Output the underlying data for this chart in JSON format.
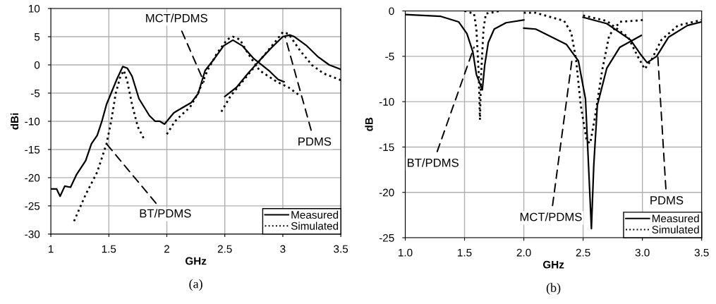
{
  "chart_data": [
    {
      "type": "line",
      "xlabel": "GHz",
      "ylabel": "dBi",
      "xlim": [
        1,
        3.5
      ],
      "ylim": [
        -30,
        10
      ],
      "xticks": [
        1,
        1.5,
        2,
        2.5,
        3,
        3.5
      ],
      "yticks": [
        -30,
        -25,
        -20,
        -15,
        -10,
        -5,
        0,
        5,
        10
      ],
      "grid": true,
      "legend": "bottom right",
      "series": [
        {
          "name": "Measured",
          "color": "#000000",
          "line_style": "solid",
          "x": [
            1.0,
            1.05,
            1.08,
            1.12,
            1.17,
            1.22,
            1.3,
            1.35,
            1.4,
            1.44,
            1.48,
            1.52,
            1.57,
            1.62,
            1.66,
            1.7,
            1.73,
            1.76,
            1.82,
            1.85,
            1.9,
            1.94,
            1.98,
            2.0,
            2.06,
            2.1,
            2.21,
            2.27,
            2.33,
            2.41,
            2.49,
            2.57,
            2.65,
            2.75,
            2.88,
            2.96,
            3.01
          ],
          "values": [
            -22,
            -22,
            -23.3,
            -21.5,
            -21.7,
            -19.5,
            -17,
            -14,
            -12.5,
            -10,
            -7,
            -5,
            -2.5,
            -0.3,
            -0.6,
            -2,
            -4,
            -6,
            -8,
            -9,
            -10,
            -10,
            -10.5,
            -10,
            -8.5,
            -8,
            -6.7,
            -5.1,
            -1,
            1.1,
            3.4,
            4.4,
            3.4,
            1.1,
            -1,
            -2.6,
            -3
          ]
        },
        {
          "name": "Simulated",
          "color": "#000000",
          "line_style": "dotted",
          "x": [
            1.2,
            1.3,
            1.4,
            1.48,
            1.52,
            1.56,
            1.6,
            1.63,
            1.66,
            1.7,
            1.75,
            1.8
          ],
          "values": [
            -27.7,
            -23,
            -19,
            -14,
            -10,
            -5,
            -2,
            -1,
            -3,
            -7,
            -11,
            -13
          ]
        },
        {
          "color": "#000000",
          "line_style": "dotted",
          "x": [
            2.0,
            2.07,
            2.12,
            2.2,
            2.27,
            2.35,
            2.43,
            2.52,
            2.57,
            2.63,
            2.7,
            2.8,
            2.95,
            3.05,
            3.15
          ],
          "values": [
            -12.3,
            -10,
            -9,
            -7.5,
            -5,
            -1,
            2,
            4.5,
            5,
            4.5,
            2,
            -1,
            -3,
            -4,
            -5.5
          ]
        },
        {
          "color": "#000000",
          "line_style": "solid",
          "x": [
            2.5,
            2.6,
            2.7,
            2.8,
            2.9,
            3.0,
            3.06,
            3.1,
            3.2,
            3.3,
            3.4,
            3.5
          ],
          "values": [
            -5.6,
            -4,
            -1.5,
            0.8,
            3,
            5,
            5.3,
            5,
            3.5,
            1.5,
            0,
            -0.8
          ]
        },
        {
          "color": "#000000",
          "line_style": "dotted",
          "x": [
            2.47,
            2.55,
            2.65,
            2.75,
            2.85,
            2.95,
            3.0,
            3.05,
            3.15,
            3.25,
            3.35,
            3.5
          ],
          "values": [
            -8.3,
            -5.5,
            -3,
            -0.5,
            2,
            4.5,
            5.8,
            5.5,
            2.5,
            0,
            -1.5,
            -2.7
          ]
        }
      ],
      "annotations": [
        {
          "text": "MCT/PDMS",
          "x": 2.32,
          "y": -3
        },
        {
          "text": "BT/PDMS",
          "x": 1.48,
          "y": -14
        },
        {
          "text": "PDMS",
          "x": 3.02,
          "y": 5
        },
        "(a)"
      ]
    },
    {
      "type": "line",
      "xlabel": "GHz",
      "ylabel": "dB",
      "xlim": [
        1,
        3.5
      ],
      "ylim": [
        -25,
        0
      ],
      "xticks": [
        {
          "value": 1,
          "label": "1.0"
        },
        1.5,
        {
          "value": 2,
          "label": "2.0"
        },
        2.5,
        {
          "value": 3,
          "label": "3.0"
        },
        3.5
      ],
      "yticks": [
        -25,
        -20,
        -15,
        -10,
        -5,
        0
      ],
      "grid": true,
      "legend": "bottom right",
      "series": [
        {
          "name": "Measured",
          "color": "#000000",
          "line_style": "solid",
          "x": [
            1.0,
            1.3,
            1.45,
            1.52,
            1.57,
            1.6,
            1.65,
            1.67,
            1.7,
            1.75,
            1.85,
            2.0
          ],
          "values": [
            -0.4,
            -0.6,
            -1.2,
            -2.5,
            -4.5,
            -7,
            -8.7,
            -6,
            -3.5,
            -2,
            -1.3,
            -1
          ]
        },
        {
          "name": "Simulated",
          "color": "#000000",
          "line_style": "dotted",
          "x": [
            1.5,
            1.58,
            1.6,
            1.62,
            1.63,
            1.64,
            1.66,
            1.68,
            1.8
          ],
          "values": [
            0,
            -0.3,
            -2,
            -7,
            -12,
            -7,
            -2,
            -0.3,
            0
          ]
        },
        {
          "color": "#000000",
          "line_style": "solid",
          "x": [
            2.0,
            2.1,
            2.36,
            2.46,
            2.52,
            2.54,
            2.57,
            2.59,
            2.62,
            2.7,
            2.81,
            2.99
          ],
          "values": [
            -1.9,
            -2,
            -3.7,
            -5.5,
            -9.7,
            -15.4,
            -24,
            -17,
            -10.4,
            -6.3,
            -4,
            -2.7
          ]
        },
        {
          "color": "#000000",
          "line_style": "dotted",
          "x": [
            2.0,
            2.1,
            2.34,
            2.4,
            2.44,
            2.48,
            2.53,
            2.56,
            2.6,
            2.66,
            2.72,
            2.81,
            3.01
          ],
          "values": [
            -0.2,
            -0.2,
            -1.1,
            -2.4,
            -5.3,
            -10.4,
            -14.3,
            -14.6,
            -11.7,
            -6.6,
            -2.7,
            -1.2,
            -1
          ]
        },
        {
          "color": "#000000",
          "line_style": "solid",
          "x": [
            2.5,
            2.7,
            2.9,
            2.98,
            3.04,
            3.12,
            3.22,
            3.38,
            3.5
          ],
          "values": [
            -0.7,
            -1.4,
            -3.2,
            -4.7,
            -5.7,
            -5,
            -2.9,
            -1.6,
            -1.2
          ]
        },
        {
          "color": "#000000",
          "line_style": "dotted",
          "x": [
            2.5,
            2.7,
            2.88,
            2.96,
            3.02,
            3.08,
            3.16,
            3.3,
            3.5
          ],
          "values": [
            -0.5,
            -1.1,
            -2.9,
            -5,
            -6.4,
            -5.3,
            -3.2,
            -1.6,
            -1
          ]
        }
      ],
      "annotations": [
        {
          "text": "BT/PDMS",
          "x": 1.58,
          "y": -4
        },
        {
          "text": "MCT/PDMS",
          "x": 2.41,
          "y": -5
        },
        {
          "text": "PDMS",
          "x": 3.13,
          "y": -5
        },
        "(b)"
      ]
    }
  ]
}
